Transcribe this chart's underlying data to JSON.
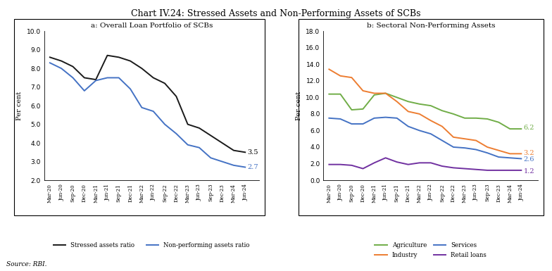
{
  "title": "Chart IV.24: Stressed Assets and Non-Performing Assets of SCBs",
  "source": "Source: RBI.",
  "panel_a": {
    "title": "a: Overall Loan Portfolio of SCBs",
    "ylabel": "Per cent",
    "xlabels": [
      "Mar-20",
      "Jun-20",
      "Sep-20",
      "Dec-20",
      "Mar-21",
      "Jun-21",
      "Sep-21",
      "Dec-21",
      "Mar-22",
      "Jun-22",
      "Sep-22",
      "Dec-22",
      "Mar-23",
      "Jun-23",
      "Sep-23",
      "Dec-23",
      "Mar-24",
      "Jun-24"
    ],
    "stressed_assets": [
      8.6,
      8.4,
      8.1,
      7.5,
      7.4,
      8.7,
      8.6,
      8.4,
      8.0,
      7.5,
      7.2,
      6.5,
      5.0,
      4.8,
      4.4,
      4.0,
      3.6,
      3.5
    ],
    "npa": [
      8.3,
      8.0,
      7.5,
      6.8,
      7.35,
      7.5,
      7.5,
      6.9,
      5.9,
      5.7,
      5.0,
      4.5,
      3.9,
      3.75,
      3.2,
      3.0,
      2.8,
      2.7
    ],
    "ylim": [
      2.0,
      10.0
    ],
    "yticks": [
      2.0,
      3.0,
      4.0,
      5.0,
      6.0,
      7.0,
      8.0,
      9.0,
      10.0
    ],
    "stressed_color": "#1a1a1a",
    "npa_color": "#4472C4",
    "stressed_label": "Stressed assets ratio",
    "npa_label": "Non-performing assets ratio",
    "end_label_stressed": "3.5",
    "end_label_npa": "2.7"
  },
  "panel_b": {
    "title": "b: Sectoral Non-Performing Assets",
    "ylabel": "Per cent",
    "xlabels": [
      "Mar-20",
      "Jun-20",
      "Sep-20",
      "Dec-20",
      "Mar-21",
      "Jun-21",
      "Sep-21",
      "Dec-21",
      "Mar-22",
      "Jun-22",
      "Sep-22",
      "Dec-22",
      "Mar-23",
      "Jun-23",
      "Sep-23",
      "Dec-23",
      "Mar-24",
      "Jun-24"
    ],
    "agriculture": [
      10.4,
      10.4,
      8.5,
      8.6,
      10.3,
      10.5,
      10.0,
      9.5,
      9.2,
      9.0,
      8.4,
      8.0,
      7.5,
      7.5,
      7.4,
      7.0,
      6.2,
      6.2
    ],
    "industry": [
      13.4,
      12.6,
      12.4,
      10.8,
      10.5,
      10.5,
      9.5,
      8.3,
      8.0,
      7.2,
      6.5,
      5.2,
      5.0,
      4.8,
      4.0,
      3.6,
      3.2,
      3.2
    ],
    "services": [
      7.5,
      7.4,
      6.8,
      6.8,
      7.5,
      7.6,
      7.5,
      6.5,
      6.0,
      5.6,
      4.8,
      4.0,
      3.9,
      3.7,
      3.3,
      2.8,
      2.7,
      2.6
    ],
    "retail_loans": [
      1.9,
      1.9,
      1.8,
      1.4,
      2.1,
      2.7,
      2.2,
      1.9,
      2.1,
      2.1,
      1.7,
      1.5,
      1.4,
      1.3,
      1.2,
      1.2,
      1.2,
      1.2
    ],
    "ylim": [
      0.0,
      18.0
    ],
    "yticks": [
      0.0,
      2.0,
      4.0,
      6.0,
      8.0,
      10.0,
      12.0,
      14.0,
      16.0,
      18.0
    ],
    "agriculture_color": "#70AD47",
    "industry_color": "#ED7D31",
    "services_color": "#4472C4",
    "retail_color": "#7030A0",
    "agriculture_label": "Agriculture",
    "industry_label": "Industry",
    "services_label": "Services",
    "retail_label": "Retail loans",
    "end_label_agri": "6.2",
    "end_label_industry": "3.2",
    "end_label_services": "2.6",
    "end_label_retail": "1.2"
  }
}
